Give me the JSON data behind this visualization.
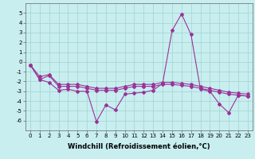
{
  "xlabel": "Windchill (Refroidissement éolien,°C)",
  "background_color": "#c8eef0",
  "grid_color": "#a0d4cc",
  "line_color": "#993399",
  "x": [
    0,
    1,
    2,
    3,
    4,
    5,
    6,
    7,
    8,
    9,
    10,
    11,
    12,
    13,
    14,
    15,
    16,
    17,
    18,
    19,
    20,
    21,
    22,
    23
  ],
  "series": [
    [
      -0.3,
      -1.8,
      -2.1,
      -2.9,
      -2.8,
      -3.0,
      -3.0,
      -6.1,
      -4.4,
      -4.9,
      -3.3,
      -3.2,
      -3.1,
      -2.9,
      -2.2,
      3.2,
      4.9,
      2.8,
      -2.8,
      -3.0,
      -4.3,
      -5.2,
      -3.4,
      -3.5
    ],
    [
      -0.3,
      -1.8,
      -1.4,
      -2.5,
      -2.5,
      -2.5,
      -2.7,
      -2.9,
      -2.9,
      -2.9,
      -2.7,
      -2.5,
      -2.5,
      -2.5,
      -2.3,
      -2.3,
      -2.4,
      -2.5,
      -2.7,
      -2.9,
      -3.1,
      -3.3,
      -3.4,
      -3.5
    ],
    [
      -0.3,
      -1.5,
      -1.3,
      -2.3,
      -2.3,
      -2.3,
      -2.5,
      -2.7,
      -2.7,
      -2.7,
      -2.5,
      -2.3,
      -2.3,
      -2.3,
      -2.1,
      -2.1,
      -2.2,
      -2.3,
      -2.5,
      -2.7,
      -2.9,
      -3.1,
      -3.2,
      -3.3
    ]
  ],
  "ylim": [
    -7,
    6
  ],
  "xlim": [
    -0.5,
    23.5
  ],
  "yticks": [
    -6,
    -5,
    -4,
    -3,
    -2,
    -1,
    0,
    1,
    2,
    3,
    4,
    5
  ],
  "xticks": [
    0,
    1,
    2,
    3,
    4,
    5,
    6,
    7,
    8,
    9,
    10,
    11,
    12,
    13,
    14,
    15,
    16,
    17,
    18,
    19,
    20,
    21,
    22,
    23
  ],
  "tick_fontsize": 5.0,
  "label_fontsize": 6.0,
  "marker": "D",
  "markersize": 2.0,
  "linewidth": 0.8
}
